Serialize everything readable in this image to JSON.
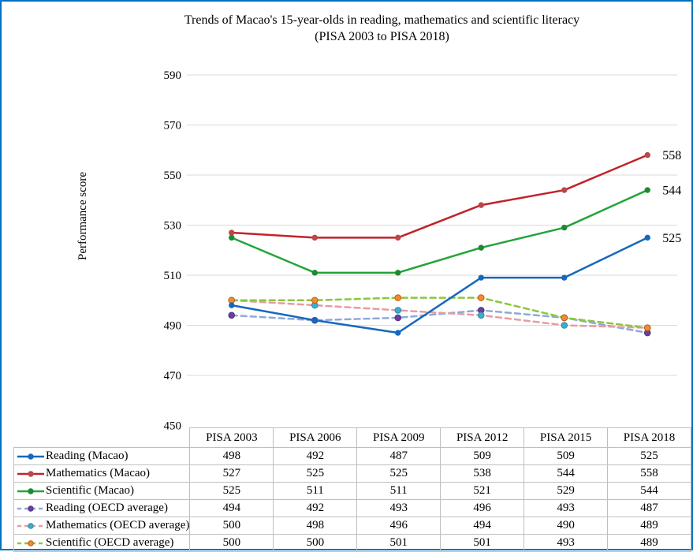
{
  "window": {
    "border_color": "#0070C0"
  },
  "title": {
    "line1": "Trends of Macao's 15-year-olds in reading, mathematics and scientific literacy",
    "line2": "(PISA 2003 to PISA 2018)"
  },
  "chart_data": {
    "type": "line",
    "title": "Trends of Macao's 15-year-olds in reading, mathematics and scientific literacy (PISA 2003 to PISA 2018)",
    "xlabel": "",
    "ylabel": "Performance score",
    "ylim": [
      450,
      590
    ],
    "yticks": [
      450,
      470,
      490,
      510,
      530,
      550,
      570,
      590
    ],
    "grid": true,
    "gridline_color": "#D9D9D9",
    "legend_position": "table-left-column",
    "categories": [
      "PISA 2003",
      "PISA 2006",
      "PISA 2009",
      "PISA 2012",
      "PISA 2015",
      "PISA 2018"
    ],
    "series": [
      {
        "name": "Reading (Macao)",
        "values": [
          498,
          492,
          487,
          509,
          509,
          525
        ],
        "style": "solid",
        "color": "#1668BC",
        "marker_color": "#1668BC",
        "marker_stroke": "#1668BC",
        "end_label": "525"
      },
      {
        "name": "Mathematics (Macao)",
        "values": [
          527,
          525,
          525,
          538,
          544,
          558
        ],
        "style": "solid",
        "color": "#C0232B",
        "marker_color": "#B9484B",
        "marker_stroke": "#B9484B",
        "end_label": "558"
      },
      {
        "name": "Scientific (Macao)",
        "values": [
          525,
          511,
          511,
          521,
          529,
          544
        ],
        "style": "solid",
        "color": "#22A43A",
        "marker_color": "#1E8833",
        "marker_stroke": "#1E8833",
        "end_label": "544"
      },
      {
        "name": "Reading (OECD average)",
        "values": [
          494,
          492,
          493,
          496,
          493,
          487
        ],
        "style": "dashed",
        "color": "#8EA9DB",
        "marker_color": "#6B3FA0",
        "marker_stroke": "#553380",
        "end_label": ""
      },
      {
        "name": "Mathematics (OECD average)",
        "values": [
          500,
          498,
          496,
          494,
          490,
          489
        ],
        "style": "dashed",
        "color": "#E79BA3",
        "marker_color": "#3BAECB",
        "marker_stroke": "#2E8CA6",
        "end_label": ""
      },
      {
        "name": "Scientific (OECD average)",
        "values": [
          500,
          500,
          501,
          501,
          493,
          489
        ],
        "style": "dashed",
        "color": "#8CC63F",
        "marker_color": "#F08C2E",
        "marker_stroke": "#C55A11",
        "end_label": ""
      }
    ]
  }
}
